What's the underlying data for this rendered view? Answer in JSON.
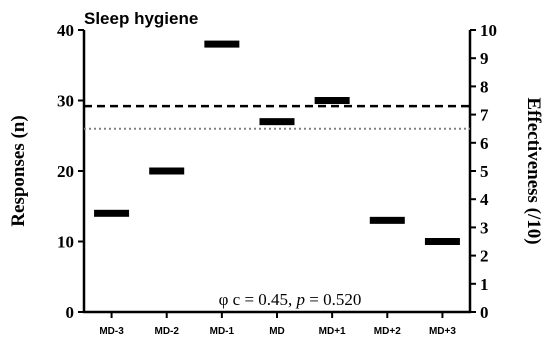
{
  "chart_data": {
    "type": "bar",
    "title": "Sleep hygiene",
    "categories": [
      "MD-3",
      "MD-2",
      "MD-1",
      "MD",
      "MD+1",
      "MD+2",
      "MD+3"
    ],
    "series": [
      {
        "values": [
          14,
          20,
          38,
          27,
          30,
          13,
          10
        ]
      }
    ],
    "marker_style": "horizontal-dash",
    "ylabel": "Responses (n)",
    "ylim": [
      0,
      40
    ],
    "yticks": [
      0,
      10,
      20,
      30,
      40
    ],
    "y2label": "Effectiveness (/10)",
    "y2lim": [
      0,
      10
    ],
    "y2ticks": [
      0,
      1,
      2,
      3,
      4,
      5,
      6,
      7,
      8,
      9,
      10
    ],
    "reference_lines": [
      {
        "style": "dashed",
        "y2_value": 7.3
      },
      {
        "style": "dotted",
        "y2_value": 6.5
      }
    ],
    "annotation": {
      "prefix": "φ c = 0.45, ",
      "p_symbol": "p",
      "suffix": " = 0.520"
    },
    "grid": false,
    "legend": "none",
    "colors": {
      "marker": "#000000",
      "dashed_line": "#000000",
      "dotted_line": "#808080"
    }
  }
}
